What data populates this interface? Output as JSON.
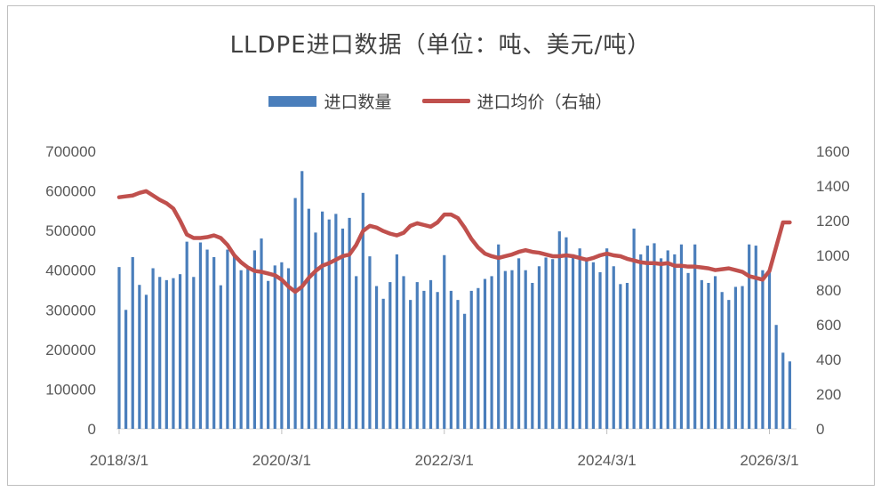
{
  "chart_data": {
    "type": "bar",
    "title": "LLDPE进口数据（单位：吨、美元/吨）",
    "legend": [
      "进口数量",
      "进口均价（右轴）"
    ],
    "x_tick_labels": [
      "2018/3/1",
      "2020/3/1",
      "2022/3/1",
      "2024/3/1",
      "2026/3/1"
    ],
    "y_left": {
      "ylim": [
        0,
        700000
      ],
      "ticks": [
        "0",
        "100000",
        "200000",
        "300000",
        "400000",
        "500000",
        "600000",
        "700000"
      ]
    },
    "y_right": {
      "ylim": [
        0,
        1600
      ],
      "ticks": [
        "0",
        "200",
        "400",
        "600",
        "800",
        "1000",
        "1200",
        "1400",
        "1600"
      ]
    },
    "grid": false,
    "legend_position": "top",
    "colors": {
      "bars": "#4a7ebb",
      "line": "#c0504d"
    },
    "x_start": "2018-03",
    "series": [
      {
        "name": "进口数量",
        "type": "bar",
        "axis": "left",
        "values": [
          408000,
          300000,
          433000,
          363000,
          338000,
          405000,
          383000,
          375000,
          380000,
          390000,
          472000,
          383000,
          470000,
          452000,
          433000,
          362000,
          452000,
          438000,
          400000,
          410000,
          450000,
          480000,
          373000,
          412000,
          420000,
          405000,
          582000,
          650000,
          555000,
          495000,
          548000,
          528000,
          542000,
          505000,
          532000,
          385000,
          595000,
          435000,
          360000,
          328000,
          370000,
          440000,
          385000,
          325000,
          370000,
          348000,
          375000,
          345000,
          438000,
          348000,
          325000,
          290000,
          348000,
          355000,
          378000,
          385000,
          465000,
          398000,
          400000,
          430000,
          400000,
          368000,
          410000,
          432000,
          428000,
          498000,
          483000,
          440000,
          455000,
          432000,
          420000,
          395000,
          455000,
          410000,
          365000,
          368000,
          505000,
          440000,
          462000,
          468000,
          430000,
          450000,
          440000,
          465000,
          393000,
          465000,
          375000,
          368000,
          385000,
          345000,
          325000,
          358000,
          360000,
          465000,
          462000,
          400000,
          398000,
          262000,
          192000,
          170000
        ]
      },
      {
        "name": "进口均价（右轴）",
        "type": "line",
        "axis": "right",
        "values": [
          1335,
          1340,
          1345,
          1360,
          1370,
          1345,
          1320,
          1300,
          1270,
          1200,
          1120,
          1100,
          1100,
          1105,
          1115,
          1100,
          1060,
          1000,
          960,
          930,
          910,
          905,
          895,
          885,
          860,
          820,
          790,
          820,
          870,
          910,
          940,
          955,
          975,
          995,
          1005,
          1060,
          1140,
          1170,
          1160,
          1140,
          1125,
          1115,
          1130,
          1170,
          1185,
          1175,
          1165,
          1190,
          1235,
          1235,
          1215,
          1160,
          1095,
          1045,
          1010,
          995,
          985,
          995,
          1005,
          1020,
          1030,
          1020,
          1015,
          1005,
          995,
          995,
          1000,
          995,
          985,
          975,
          985,
          1000,
          1010,
          1000,
          995,
          980,
          970,
          960,
          955,
          955,
          950,
          955,
          940,
          940,
          935,
          935,
          930,
          925,
          915,
          920,
          925,
          915,
          905,
          880,
          870,
          860,
          910,
          1050,
          1190,
          1190
        ]
      }
    ]
  }
}
